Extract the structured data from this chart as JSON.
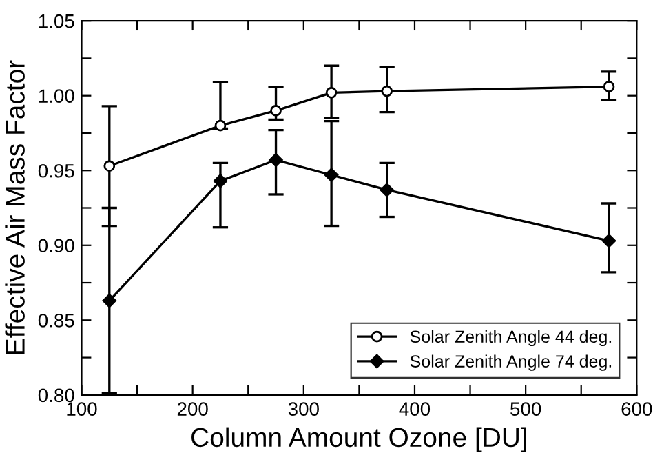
{
  "chart_data": {
    "type": "line",
    "xlabel": "Column Amount Ozone [DU]",
    "ylabel": "Effective Air Mass Factor",
    "x": [
      125,
      225,
      275,
      325,
      375,
      575
    ],
    "series": [
      {
        "name": "Solar Zenith Angle 44 deg.",
        "color": "#000000",
        "marker": "circle",
        "values": [
          0.953,
          0.98,
          0.99,
          1.002,
          1.003,
          1.006
        ],
        "errors": [
          [
            0.913,
            0.993
          ],
          [
            0.978,
            1.009
          ],
          [
            0.984,
            1.006
          ],
          [
            0.985,
            1.02
          ],
          [
            0.989,
            1.019
          ],
          [
            0.997,
            1.016
          ]
        ]
      },
      {
        "name": "Solar Zenith Angle 74 deg.",
        "color": "#000000",
        "marker": "diamond",
        "values": [
          0.863,
          0.943,
          0.957,
          0.947,
          0.937,
          0.903
        ],
        "errors": [
          [
            0.801,
            0.925
          ],
          [
            0.912,
            0.955
          ],
          [
            0.934,
            0.977
          ],
          [
            0.913,
            0.983
          ],
          [
            0.919,
            0.955
          ],
          [
            0.882,
            0.928
          ]
        ]
      }
    ],
    "xlim": [
      100,
      600
    ],
    "ylim": [
      0.8,
      1.05
    ],
    "xticks": [
      100,
      {
        "value": 150,
        "label": null
      },
      200,
      {
        "value": 250,
        "label": null
      },
      300,
      {
        "value": 350,
        "label": null
      },
      400,
      {
        "value": 450,
        "label": null
      },
      500,
      {
        "value": 550,
        "label": null
      },
      600
    ],
    "yticks": [
      {
        "value": 0.8,
        "label": "0.80"
      },
      {
        "value": 0.825,
        "label": null
      },
      {
        "value": 0.85,
        "label": "0.85"
      },
      {
        "value": 0.875,
        "label": null
      },
      {
        "value": 0.9,
        "label": "0.90"
      },
      {
        "value": 0.925,
        "label": null
      },
      {
        "value": 0.95,
        "label": "0.95"
      },
      {
        "value": 0.975,
        "label": null
      },
      {
        "value": 1.0,
        "label": "1.00"
      },
      {
        "value": 1.025,
        "label": null
      },
      {
        "value": 1.05,
        "label": "1.05"
      }
    ],
    "grid": false,
    "legend": "bottom right",
    "line_style": "solid"
  }
}
